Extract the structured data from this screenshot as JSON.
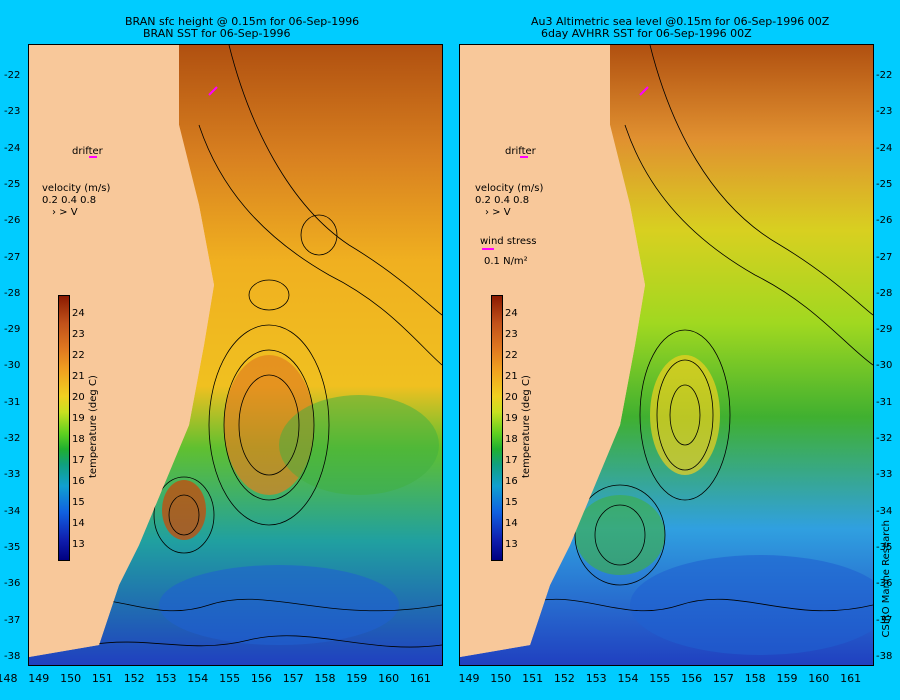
{
  "left_panel": {
    "title_line1": "BRAN sfc height @ 0.15m for 06-Sep-1996",
    "title_line2": "BRAN SST for 06-Sep-1996"
  },
  "right_panel": {
    "title_line1": "Au3 Altimetric sea level  @0.15m  for 06-Sep-1996 00Z",
    "title_line2": "6day AVHRR SST for 06-Sep-1996 00Z"
  },
  "labels": {
    "drifter": "drifter",
    "velocity": "velocity (m/s)",
    "velocity_scale": "0.2 0.4 0.8",
    "velocity_arrows": "›  >  V",
    "wind_stress": "wind stress",
    "wind_unit": "0.1 N/m²",
    "colorbar_label": "temperature (deg C)",
    "credit": "CSIRO Marine Research"
  },
  "y_ticks": [
    "-22",
    "-23",
    "-24",
    "-25",
    "-26",
    "-27",
    "-28",
    "-29",
    "-30",
    "-31",
    "-32",
    "-33",
    "-34",
    "-35",
    "-36",
    "-37",
    "-38"
  ],
  "x_ticks_left": [
    "148",
    "149",
    "150",
    "151",
    "152",
    "153",
    "154",
    "155",
    "156",
    "157",
    "158",
    "159",
    "160",
    "161"
  ],
  "x_ticks_right": [
    "149",
    "150",
    "151",
    "152",
    "153",
    "154",
    "155",
    "156",
    "157",
    "158",
    "159",
    "160",
    "161"
  ],
  "colorbar_ticks": [
    "24",
    "23",
    "22",
    "21",
    "20",
    "19",
    "18",
    "17",
    "16",
    "15",
    "14",
    "13"
  ],
  "colors": {
    "background": "#00ccff",
    "land": "#f8c89a",
    "drifter": "#ff00ff"
  }
}
